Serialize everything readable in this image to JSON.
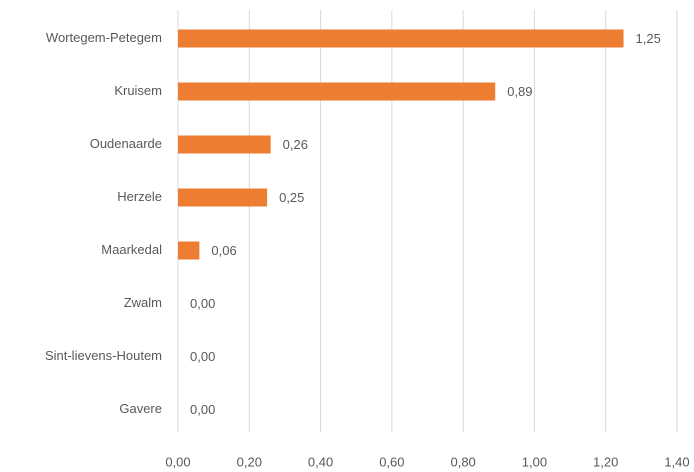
{
  "chart_data": {
    "type": "bar",
    "orientation": "horizontal",
    "categories": [
      "Wortegem-Petegem",
      "Kruisem",
      "Oudenaarde",
      "Herzele",
      "Maarkedal",
      "Zwalm",
      "Sint-lievens-Houtem",
      "Gavere"
    ],
    "values": [
      1.25,
      0.89,
      0.26,
      0.25,
      0.06,
      0.0,
      0.0,
      0.0
    ],
    "value_labels": [
      "1,25",
      "0,89",
      "0,26",
      "0,25",
      "0,06",
      "0,00",
      "0,00",
      "0,00"
    ],
    "color": "#ed7d31",
    "xlim": [
      0,
      1.4
    ],
    "xticks": [
      {
        "value": 0,
        "label": "0,00"
      },
      {
        "value": 0.2,
        "label": "0,20"
      },
      {
        "value": 0.4,
        "label": "0,40"
      },
      {
        "value": 0.6,
        "label": "0,60"
      },
      {
        "value": 0.8,
        "label": "0,80"
      },
      {
        "value": 1.0,
        "label": "1,00"
      },
      {
        "value": 1.2,
        "label": "1,20"
      },
      {
        "value": 1.4,
        "label": "1,40"
      }
    ],
    "grid": true
  }
}
